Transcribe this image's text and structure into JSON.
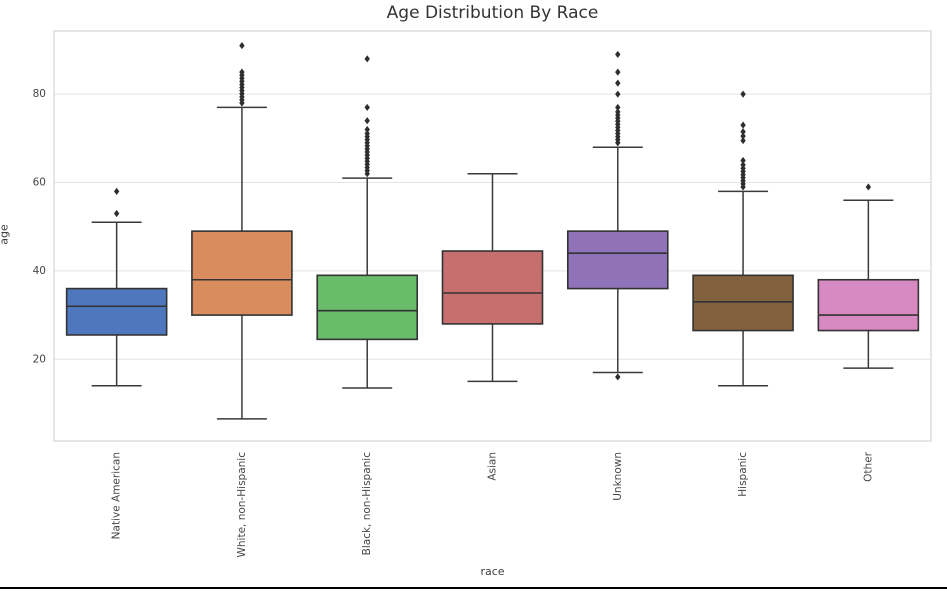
{
  "title": "Age Distribution By Race",
  "xlabel": "race",
  "ylabel": "age",
  "style": {
    "background": "#ffffff",
    "grid_color": "#e4e4e4",
    "frame_color": "#d6d6d6",
    "box_edge_color": "#333333",
    "whisker_color": "#3a3a3a",
    "outlier_color": "#2e2e2e",
    "tick_label_color": "#464646",
    "title_color": "#333333"
  },
  "chart_data": {
    "type": "box",
    "title": "Age Distribution By Race",
    "xlabel": "race",
    "ylabel": "age",
    "ylim": [
      1.5,
      94.3
    ],
    "yticks": [
      20,
      40,
      60,
      80
    ],
    "grid": "horizontal",
    "legend": "none",
    "categories": [
      "Native American",
      "White, non-Hispanic",
      "Black, non-Hispanic",
      "Asian",
      "Unknown",
      "Hispanic",
      "Other"
    ],
    "series": [
      {
        "label": "Native American",
        "color": "#4F77BD",
        "whisker_low": 14,
        "q1": 25.5,
        "median": 32,
        "q3": 36,
        "whisker_high": 51,
        "outliers": [
          53,
          58
        ]
      },
      {
        "label": "White, non-Hispanic",
        "color": "#D98C5E",
        "whisker_low": 6.5,
        "q1": 30,
        "median": 38,
        "q3": 49,
        "whisker_high": 77,
        "outliers": [
          78,
          78.7,
          79.4,
          80.1,
          80.8,
          81.5,
          82.2,
          82.9,
          83.6,
          84.3,
          85,
          91
        ]
      },
      {
        "label": "Black, non-Hispanic",
        "color": "#69BC69",
        "whisker_low": 13.5,
        "q1": 24.5,
        "median": 31,
        "q3": 39,
        "whisker_high": 61,
        "outliers": [
          62,
          62.7,
          63.4,
          64.1,
          64.8,
          65.5,
          66.2,
          66.9,
          67.6,
          68.3,
          69,
          69.7,
          70.4,
          71.1,
          72,
          74,
          77,
          88
        ]
      },
      {
        "label": "Asian",
        "color": "#C76E6E",
        "whisker_low": 15,
        "q1": 28,
        "median": 35,
        "q3": 44.5,
        "whisker_high": 62,
        "outliers": []
      },
      {
        "label": "Unknown",
        "color": "#8F72B8",
        "whisker_low": 17,
        "q1": 36,
        "median": 44,
        "q3": 49,
        "whisker_high": 68,
        "outliers": [
          16,
          69,
          69.7,
          70.4,
          71.1,
          71.8,
          72.5,
          73.2,
          73.9,
          74.6,
          75.3,
          76,
          77,
          80,
          82.5,
          85,
          89
        ]
      },
      {
        "label": "Hispanic",
        "color": "#82613F",
        "whisker_low": 14,
        "q1": 26.5,
        "median": 33,
        "q3": 39,
        "whisker_high": 58,
        "outliers": [
          59,
          59.7,
          60.4,
          61.1,
          61.8,
          62.5,
          63.2,
          64,
          65,
          69.5,
          70.5,
          71.5,
          73,
          80
        ]
      },
      {
        "label": "Other",
        "color": "#D78AC2",
        "whisker_low": 18,
        "q1": 26.5,
        "median": 30,
        "q3": 38,
        "whisker_high": 56,
        "outliers": [
          59
        ]
      }
    ]
  }
}
